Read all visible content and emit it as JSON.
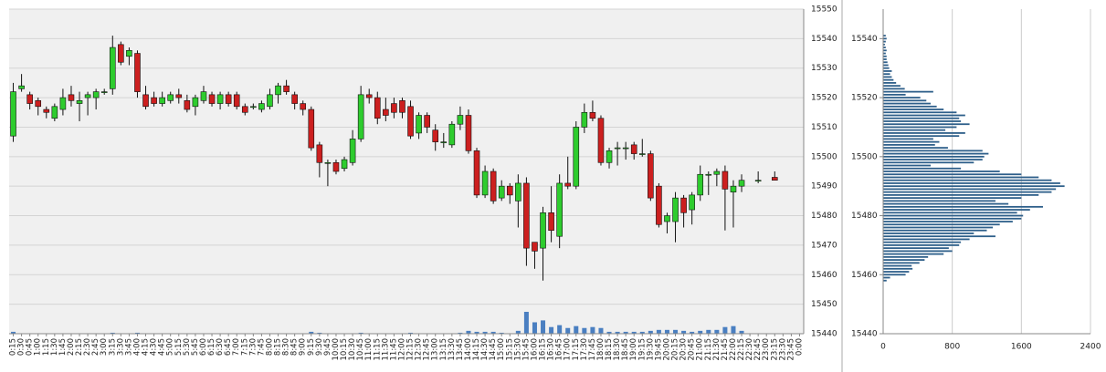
{
  "chart_data": [
    {
      "type": "candlestick",
      "categories": [
        "0:15",
        "0:30",
        "0:45",
        "1:00",
        "1:15",
        "1:30",
        "1:45",
        "2:00",
        "2:15",
        "2:30",
        "2:45",
        "3:00",
        "3:15",
        "3:30",
        "3:45",
        "4:00",
        "4:15",
        "4:30",
        "4:45",
        "5:00",
        "5:15",
        "5:30",
        "5:45",
        "6:00",
        "6:15",
        "6:30",
        "6:45",
        "7:00",
        "7:15",
        "7:30",
        "7:45",
        "8:00",
        "8:15",
        "8:30",
        "8:45",
        "9:00",
        "9:15",
        "9:30",
        "9:45",
        "10:00",
        "10:15",
        "10:30",
        "10:45",
        "11:00",
        "11:15",
        "11:30",
        "11:45",
        "12:00",
        "12:15",
        "12:30",
        "12:45",
        "13:00",
        "13:15",
        "13:30",
        "13:45",
        "14:00",
        "14:15",
        "14:30",
        "14:45",
        "15:00",
        "15:15",
        "15:30",
        "15:45",
        "16:00",
        "16:15",
        "16:30",
        "16:45",
        "17:00",
        "17:15",
        "17:30",
        "17:45",
        "18:00",
        "18:15",
        "18:30",
        "18:45",
        "19:00",
        "19:15",
        "19:30",
        "19:45",
        "20:00",
        "20:15",
        "20:30",
        "20:45",
        "21:00",
        "21:15",
        "21:30",
        "21:45",
        "22:00",
        "22:15",
        "22:30",
        "22:45",
        "23:00",
        "23:15",
        "23:30",
        "23:45",
        "0:00"
      ],
      "open": [
        15507,
        15523,
        15521,
        15519,
        15516,
        15513,
        15516,
        15521,
        15518,
        15520,
        15520,
        15522,
        15523,
        15538,
        15534,
        15535,
        15521,
        15520,
        15518,
        15519,
        15521,
        15519,
        15517,
        15519,
        15521,
        15518,
        15521,
        15521,
        15517,
        15517,
        15516,
        15517,
        15521,
        15524,
        15521,
        15518,
        15516,
        15504,
        15498,
        15498,
        15496,
        15498,
        15506,
        15521,
        15520,
        15516,
        15518,
        15519,
        15517,
        15508,
        15514,
        15509,
        15505,
        15504,
        15511,
        15514,
        15502,
        15487,
        15495,
        15486,
        15490,
        15485,
        15491,
        15471,
        15469,
        15481,
        15473,
        15491,
        15490,
        15510,
        15515,
        15513,
        15498,
        15503,
        15503,
        15504,
        15501,
        15501,
        15490,
        15478,
        15478,
        15486,
        15482,
        15487,
        15494,
        15494,
        15495,
        15488,
        15490,
        null,
        15492,
        null,
        15493,
        null,
        null,
        null
      ],
      "high": [
        15525,
        15528,
        15522,
        15520,
        15517,
        15518,
        15523,
        15524,
        15522,
        15522,
        15523,
        15523,
        15541,
        15539,
        15537,
        15536,
        15524,
        15522,
        15522,
        15522,
        15523,
        15521,
        15521,
        15524,
        15522,
        15522,
        15522,
        15522,
        15518,
        15518,
        15519,
        15523,
        15525,
        15526,
        15522,
        15519,
        15517,
        15505,
        15499,
        15499,
        15500,
        15509,
        15524,
        15523,
        15522,
        15520,
        15520,
        15520,
        15519,
        15515,
        15515,
        15511,
        15508,
        15512,
        15517,
        15516,
        15503,
        15497,
        15496,
        15492,
        15491,
        15494,
        15493,
        15471,
        15483,
        15490,
        15494,
        15500,
        15512,
        15518,
        15519,
        15514,
        15503,
        15505,
        15505,
        15505,
        15506,
        15502,
        15491,
        15481,
        15488,
        15487,
        15488,
        15497,
        15495,
        15496,
        15497,
        15492,
        15494,
        null,
        15495,
        null,
        15495,
        null,
        null,
        null
      ],
      "low": [
        15505,
        15522,
        15516,
        15514,
        15513,
        15512,
        15514,
        15517,
        15512,
        15514,
        15516,
        15521,
        15521,
        15531,
        15531,
        15520,
        15516,
        15517,
        15517,
        15518,
        15518,
        15515,
        15514,
        15518,
        15517,
        15516,
        15517,
        15516,
        15514,
        15516,
        15515,
        15516,
        15518,
        15521,
        15516,
        15514,
        15502,
        15493,
        15490,
        15494,
        15495,
        15497,
        15505,
        15518,
        15511,
        15512,
        15513,
        15513,
        15506,
        15506,
        15508,
        15502,
        15503,
        15503,
        15509,
        15501,
        15486,
        15486,
        15484,
        15485,
        15484,
        15476,
        15463,
        15462,
        15458,
        15471,
        15469,
        15489,
        15489,
        15508,
        15512,
        15497,
        15496,
        15497,
        15499,
        15499,
        15500,
        15485,
        15476,
        15474,
        15471,
        15476,
        15477,
        15485,
        15487,
        15490,
        15475,
        15476,
        15488,
        null,
        15491,
        null,
        15492,
        null,
        null,
        null
      ],
      "close": [
        15522,
        15524,
        15518,
        15517,
        15515,
        15517,
        15520,
        15519,
        15519,
        15521,
        15522,
        15522,
        15537,
        15532,
        15536,
        15522,
        15517,
        15518,
        15520,
        15521,
        15520,
        15516,
        15520,
        15522,
        15518,
        15521,
        15518,
        15517,
        15515,
        15517,
        15518,
        15521,
        15524,
        15522,
        15518,
        15516,
        15503,
        15498,
        15498,
        15495,
        15499,
        15506,
        15521,
        15520,
        15513,
        15514,
        15515,
        15515,
        15507,
        15514,
        15510,
        15505,
        15505,
        15511,
        15514,
        15502,
        15487,
        15495,
        15485,
        15490,
        15487,
        15491,
        15469,
        15468,
        15481,
        15475,
        15491,
        15490,
        15510,
        15515,
        15513,
        15498,
        15502,
        15503,
        15503,
        15501,
        15501,
        15486,
        15477,
        15480,
        15486,
        15481,
        15487,
        15494,
        15494,
        15495,
        15489,
        15490,
        15492,
        null,
        15492,
        null,
        15492,
        null,
        null,
        null
      ],
      "up_color": "#2ecc2e",
      "down_color": "#cc1f1f",
      "volume": {
        "color": "#4a7fc1",
        "values": [
          2,
          0,
          0,
          0,
          0,
          0,
          0,
          0,
          0,
          0,
          0,
          0,
          1,
          0,
          0,
          1,
          0,
          0,
          0,
          0,
          0,
          0,
          0,
          0,
          0,
          0,
          0,
          0,
          0,
          0,
          0,
          0,
          0,
          0,
          0,
          0,
          2,
          1,
          0,
          0,
          0,
          0,
          1,
          0,
          0,
          0,
          0,
          0,
          1,
          0,
          0,
          0,
          0,
          0,
          1,
          3,
          2,
          2,
          2,
          1,
          0,
          3,
          23,
          12,
          14,
          7,
          9,
          6,
          8,
          6,
          7,
          6,
          2,
          2,
          2,
          2,
          2,
          3,
          4,
          4,
          4,
          3,
          2,
          3,
          4,
          4,
          7,
          8,
          3,
          null,
          0,
          null,
          0,
          null,
          null,
          null
        ]
      },
      "ylim": [
        15440,
        15550
      ],
      "yticks": [
        15440,
        15450,
        15460,
        15470,
        15480,
        15490,
        15500,
        15510,
        15520,
        15530,
        15540,
        15550
      ],
      "grid": true
    },
    {
      "type": "bar",
      "orientation": "horizontal",
      "color": "#2e5f8a",
      "y": [
        15458,
        15459,
        15460,
        15461,
        15462,
        15463,
        15464,
        15465,
        15466,
        15467,
        15468,
        15469,
        15470,
        15471,
        15472,
        15473,
        15474,
        15475,
        15476,
        15477,
        15478,
        15479,
        15480,
        15481,
        15482,
        15483,
        15484,
        15485,
        15486,
        15487,
        15488,
        15489,
        15490,
        15491,
        15492,
        15493,
        15494,
        15495,
        15496,
        15497,
        15498,
        15499,
        15500,
        15501,
        15502,
        15503,
        15504,
        15505,
        15506,
        15507,
        15508,
        15509,
        15510,
        15511,
        15512,
        15513,
        15514,
        15515,
        15516,
        15517,
        15518,
        15519,
        15520,
        15521,
        15522,
        15523,
        15524,
        15525,
        15526,
        15527,
        15528,
        15529,
        15530,
        15531,
        15532,
        15533,
        15534,
        15535,
        15536,
        15537,
        15538,
        15539,
        15540,
        15541
      ],
      "values": [
        40,
        80,
        260,
        300,
        340,
        330,
        420,
        480,
        520,
        700,
        800,
        760,
        880,
        900,
        1000,
        1300,
        1050,
        1200,
        1270,
        1350,
        1500,
        1600,
        1620,
        1550,
        1700,
        1850,
        1450,
        1300,
        1600,
        1800,
        1950,
        2000,
        2100,
        2050,
        1950,
        1800,
        1600,
        1350,
        900,
        550,
        1050,
        1150,
        1170,
        1220,
        1150,
        750,
        600,
        650,
        580,
        880,
        950,
        720,
        850,
        1000,
        900,
        880,
        950,
        850,
        700,
        620,
        550,
        500,
        430,
        260,
        580,
        250,
        200,
        150,
        120,
        100,
        80,
        100,
        70,
        60,
        50,
        40,
        40,
        30,
        40,
        30,
        20,
        30,
        40,
        30
      ],
      "xlim": [
        0,
        2400
      ],
      "xticks": [
        0,
        800,
        1600,
        2400
      ],
      "ylim": [
        15440,
        15550
      ],
      "yticks": [
        15440,
        15460,
        15480,
        15500,
        15520,
        15540
      ],
      "grid": true
    }
  ]
}
